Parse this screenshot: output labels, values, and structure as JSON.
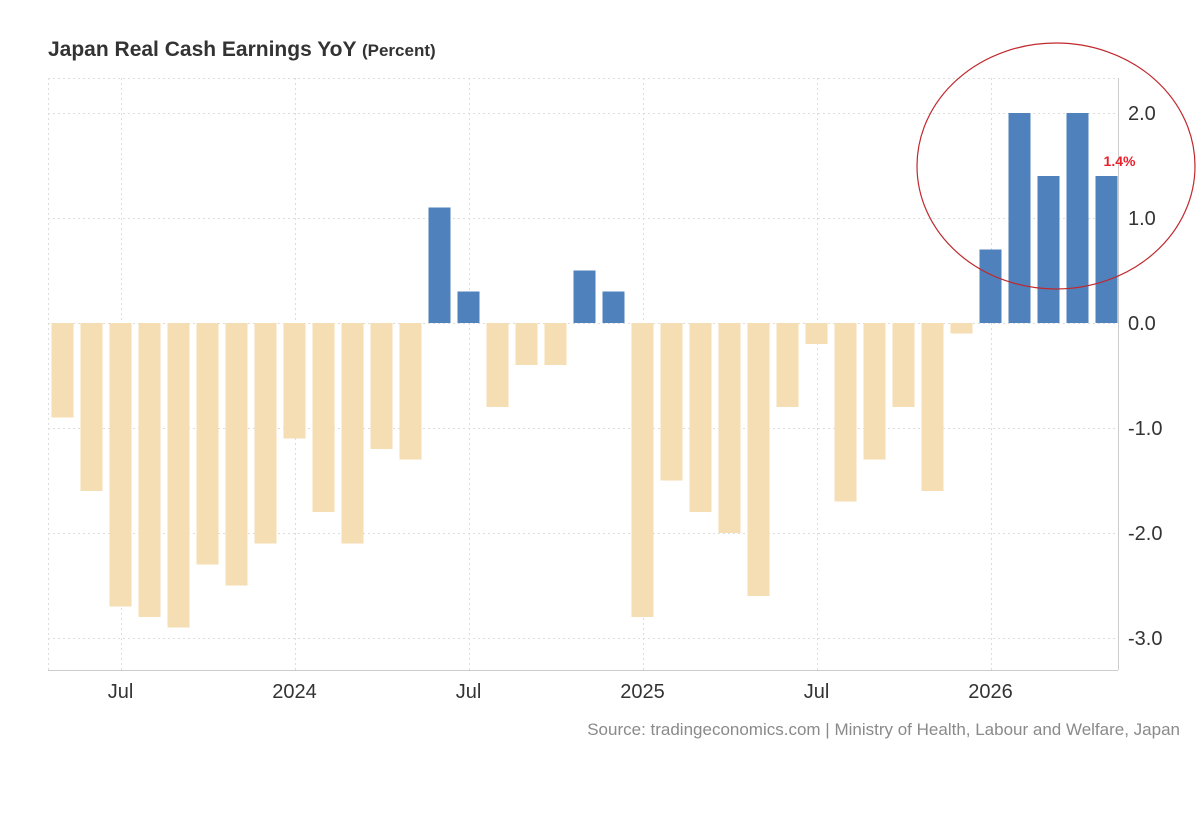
{
  "chart_data": {
    "type": "bar",
    "title": "Japan Real Cash Earnings YoY",
    "unit": "(Percent)",
    "xlabel": "",
    "ylabel": "",
    "ylim": [
      -3.3,
      2.3
    ],
    "yticks": [
      2.0,
      1.0,
      0.0,
      -1.0,
      -2.0,
      -3.0
    ],
    "ytick_labels": [
      "2.0",
      "1.0",
      "0.0",
      "-1.0",
      "-2.0",
      "-3.0"
    ],
    "x_ticks": [
      {
        "label": "Jul",
        "date": "2023-07"
      },
      {
        "label": "2024",
        "date": "2024-01"
      },
      {
        "label": "Jul",
        "date": "2024-07"
      },
      {
        "label": "2025",
        "date": "2025-01"
      },
      {
        "label": "Jul",
        "date": "2025-07"
      },
      {
        "label": "2026",
        "date": "2026-01"
      }
    ],
    "categories": [
      "2023-05",
      "2023-06",
      "2023-07",
      "2023-08",
      "2023-09",
      "2023-10",
      "2023-11",
      "2023-12",
      "2024-01",
      "2024-02",
      "2024-03",
      "2024-04",
      "2024-05",
      "2024-06",
      "2024-07",
      "2024-08",
      "2024-09",
      "2024-10",
      "2024-11",
      "2024-12",
      "2025-01",
      "2025-02",
      "2025-03",
      "2025-04",
      "2025-05",
      "2025-06",
      "2025-07",
      "2025-08",
      "2025-09",
      "2025-10",
      "2025-11",
      "2025-12",
      "2026-01",
      "2026-02",
      "2026-03",
      "2026-04",
      "2026-05"
    ],
    "values": [
      -0.9,
      -1.6,
      -2.7,
      -2.8,
      -2.9,
      -2.3,
      -2.5,
      -2.1,
      -1.1,
      -1.8,
      -2.1,
      -1.2,
      -1.3,
      1.1,
      0.3,
      -0.8,
      -0.4,
      -0.4,
      0.5,
      0.3,
      -2.8,
      -1.5,
      -1.8,
      -2.0,
      -2.6,
      -0.8,
      -0.2,
      -1.7,
      -1.3,
      -0.8,
      -1.6,
      -0.1,
      0.7,
      2.0,
      1.4,
      2.0,
      1.4
    ],
    "grid": true,
    "legend": "none",
    "colors": {
      "positive": "#4f81bd",
      "negative": "#f5deb3",
      "grid": "#dddddd",
      "axis": "#cccccc",
      "highlight_circle": "#c0282d",
      "callout": "#e8212b"
    },
    "annotation": {
      "label": "1.4%",
      "target": "last-bar",
      "circle": "around the last five bars"
    }
  },
  "source": "Source: tradingeconomics.com | Ministry of Health, Labour and Welfare, Japan"
}
